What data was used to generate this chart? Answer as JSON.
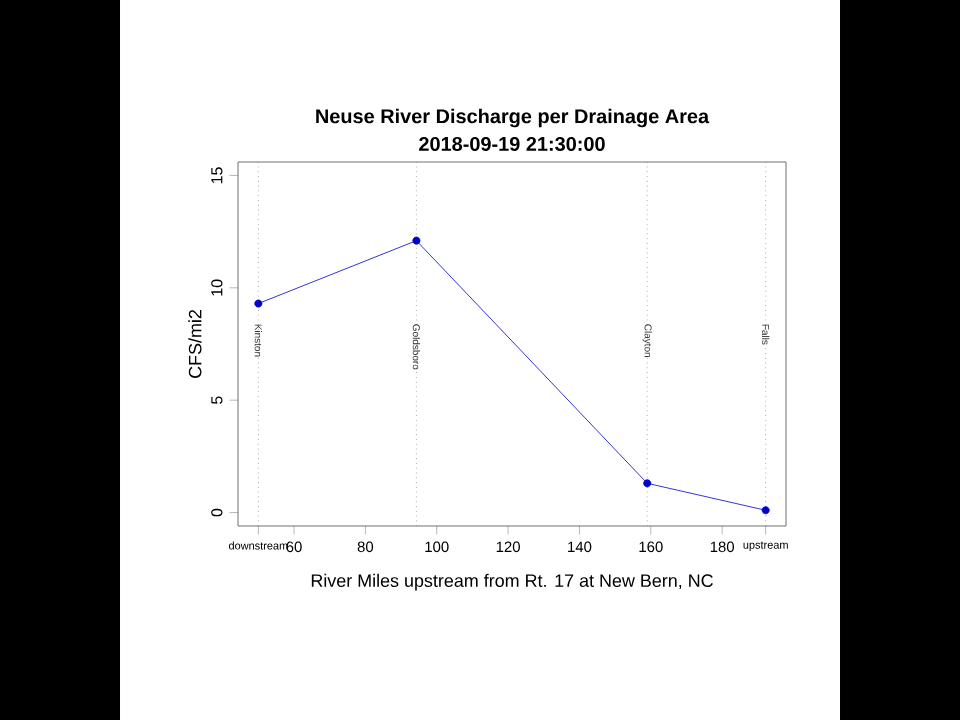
{
  "chart_data": {
    "type": "line",
    "title": "Neuse River Discharge per Drainage Area",
    "subtitle": "2018-09-19 21:30:00",
    "xlabel": "River Miles upstream from Rt. 17 at New Bern, NC",
    "ylabel": "CFS/mi2",
    "x": [
      50.0,
      94.3,
      159.0,
      192.2
    ],
    "series": [
      {
        "color": "#0000cd",
        "values": [
          9.3,
          12.1,
          1.3,
          0.1
        ]
      }
    ],
    "marker": "circle",
    "line_style": "solid",
    "xlim": [
      44.3,
      197.9
    ],
    "ylim": [
      -0.6,
      15.6
    ],
    "xticks": [
      {
        "value": 50.0,
        "label": "downstream"
      },
      60,
      80,
      100,
      120,
      140,
      160,
      180,
      {
        "value": 192.2,
        "label": "upstream"
      }
    ],
    "yticks": [
      0,
      5,
      10,
      15
    ],
    "ref_lines": [
      {
        "axis": "x",
        "value": 50.0,
        "label": "Kinston",
        "color": "#808080",
        "line_style": "dotted"
      },
      {
        "axis": "x",
        "value": 94.3,
        "label": "Goldsboro",
        "color": "#808080",
        "line_style": "dotted"
      },
      {
        "axis": "x",
        "value": 159.0,
        "label": "Clayton",
        "color": "#808080",
        "line_style": "dotted"
      },
      {
        "axis": "x",
        "value": 192.2,
        "label": "Falls",
        "color": "#808080",
        "line_style": "dotted"
      }
    ]
  }
}
